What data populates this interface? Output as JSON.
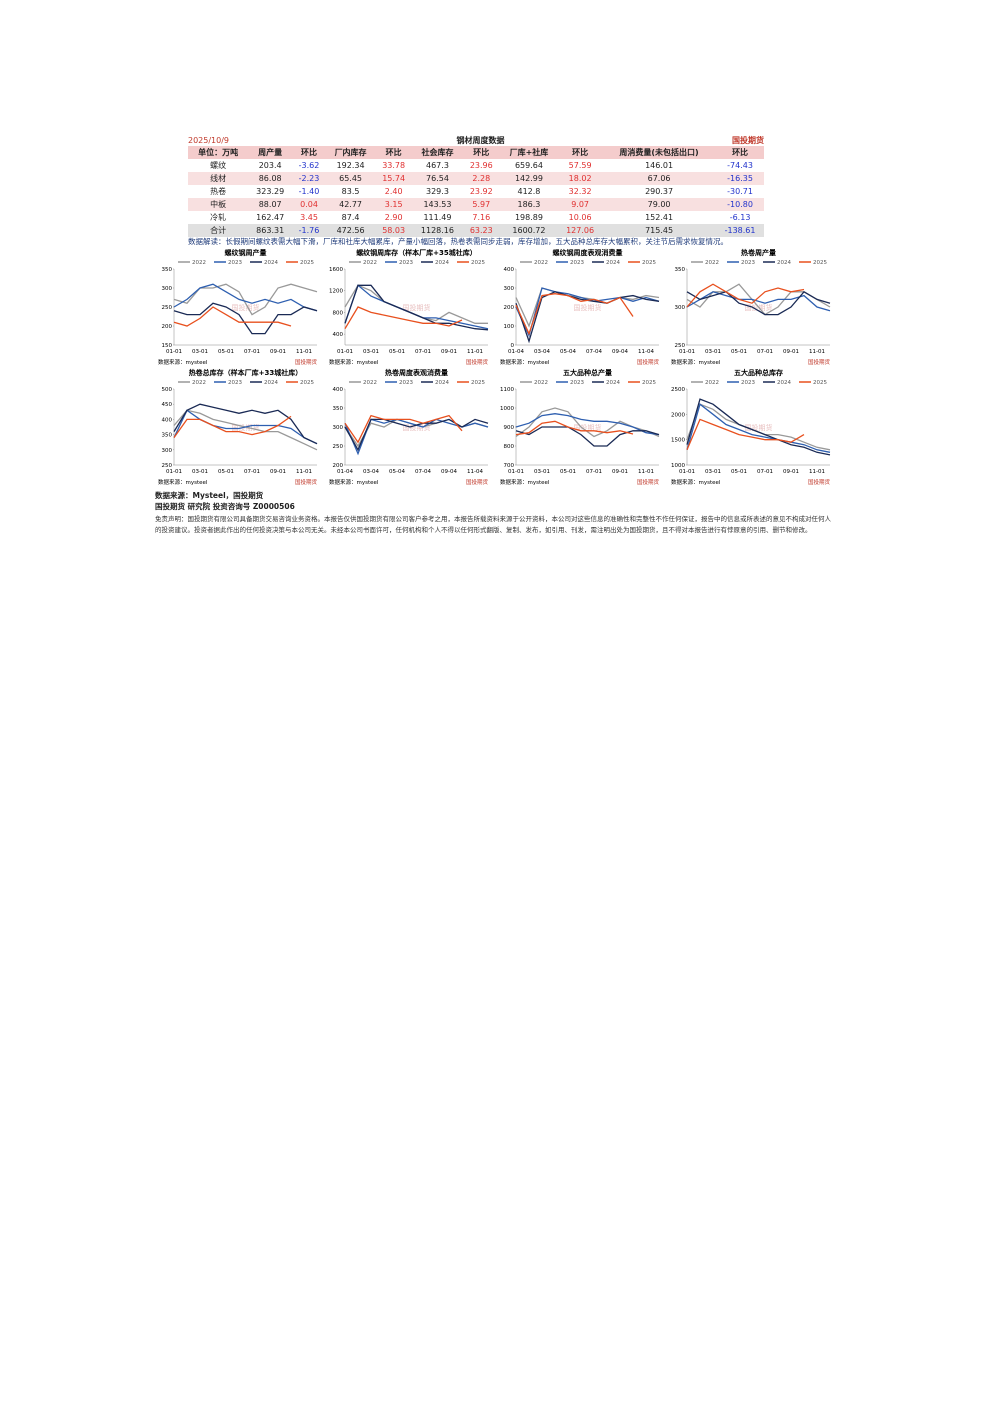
{
  "header": {
    "date": "2025/10/9",
    "title": "钢材周度数据",
    "logo": "国投期货"
  },
  "table": {
    "columns": [
      "单位：万吨",
      "周产量",
      "环比",
      "厂内库存",
      "环比",
      "社会库存",
      "环比",
      "厂库+社库",
      "环比",
      "周消费量(未包括出口)",
      "环比"
    ],
    "rows": [
      [
        "螺纹",
        203.4,
        -3.62,
        192.34,
        33.78,
        467.3,
        23.96,
        659.64,
        57.59,
        146.01,
        -74.43
      ],
      [
        "线材",
        86.08,
        -2.23,
        65.45,
        15.74,
        76.54,
        2.28,
        142.99,
        18.02,
        67.06,
        -16.35
      ],
      [
        "热卷",
        323.29,
        -1.4,
        83.5,
        2.4,
        329.3,
        23.92,
        412.8,
        32.32,
        290.37,
        -30.71
      ],
      [
        "中板",
        88.07,
        0.04,
        42.77,
        3.15,
        143.53,
        5.97,
        186.3,
        9.07,
        79,
        -10.8
      ],
      [
        "冷轧",
        162.47,
        3.45,
        87.4,
        2.9,
        111.49,
        7.16,
        198.89,
        10.06,
        152.41,
        -6.13
      ],
      [
        "合计",
        863.31,
        -1.76,
        472.56,
        58.03,
        1128.16,
        63.23,
        1600.72,
        127.06,
        715.45,
        -138.61
      ]
    ],
    "value_labels": {
      "rows": [
        [
          null,
          "203.4",
          "-3.62",
          "192.34",
          "33.78",
          "467.3",
          "23.96",
          "659.64",
          "57.59",
          "146.01",
          "-74.43"
        ],
        [
          null,
          "86.08",
          "-2.23",
          "65.45",
          "15.74",
          "76.54",
          "2.28",
          "142.99",
          "18.02",
          "67.06",
          "-16.35"
        ],
        [
          null,
          "323.29",
          "-1.40",
          "83.5",
          "2.40",
          "329.3",
          "23.92",
          "412.8",
          "32.32",
          "290.37",
          "-30.71"
        ],
        [
          null,
          "88.07",
          "0.04",
          "42.77",
          "3.15",
          "143.53",
          "5.97",
          "186.3",
          "9.07",
          "79.00",
          "-10.80"
        ],
        [
          null,
          "162.47",
          "3.45",
          "87.4",
          "2.90",
          "111.49",
          "7.16",
          "198.89",
          "10.06",
          "152.41",
          "-6.13"
        ],
        [
          null,
          "863.31",
          "-1.76",
          "472.56",
          "58.03",
          "1128.16",
          "63.23",
          "1600.72",
          "127.06",
          "715.45",
          "-138.61"
        ]
      ]
    }
  },
  "note": "数据解读：长假期间螺纹表需大幅下滑，厂库和社库大幅累库，产量小幅回落，热卷表需同步走弱，库存增加，五大品种总库存大幅累积，关注节后需求恢复情况。",
  "chart_data": [
    {
      "type": "line",
      "title": "螺纹钢周产量",
      "source": "数据来源：mysteel",
      "categories": [
        "01-01",
        null,
        "03-01",
        null,
        "05-01",
        null,
        "07-01",
        null,
        "09-01",
        null,
        "11-01",
        null
      ],
      "ylim": [
        150,
        350
      ],
      "yticks": [
        150,
        200,
        250,
        300,
        350
      ],
      "series": [
        {
          "name": "2022",
          "color": "#999999",
          "values": [
            270,
            260,
            300,
            300,
            310,
            290,
            230,
            250,
            300,
            310,
            300,
            290
          ]
        },
        {
          "name": "2023",
          "color": "#2e5fb0",
          "values": [
            250,
            270,
            300,
            310,
            290,
            270,
            260,
            270,
            260,
            270,
            250,
            240
          ]
        },
        {
          "name": "2024",
          "color": "#1a2a55",
          "values": [
            240,
            230,
            230,
            260,
            250,
            230,
            180,
            180,
            230,
            230,
            250,
            240
          ]
        },
        {
          "name": "2025",
          "color": "#e8501e",
          "values": [
            210,
            200,
            220,
            250,
            230,
            210,
            210,
            210,
            210,
            200,
            null,
            null
          ]
        }
      ]
    },
    {
      "type": "line",
      "title": "螺纹钢周库存（样本厂库+35城社库）",
      "source": "数据来源：mysteel",
      "categories": [
        "01-01",
        null,
        "03-01",
        null,
        "05-01",
        null,
        "07-01",
        null,
        "09-01",
        null,
        "11-01",
        null
      ],
      "ylim": [
        200,
        1600
      ],
      "yticks": [
        400,
        800,
        1200,
        1600
      ],
      "series": [
        {
          "name": "2022",
          "color": "#999999",
          "values": [
            900,
            1300,
            1200,
            1000,
            900,
            800,
            700,
            650,
            800,
            700,
            600,
            600
          ]
        },
        {
          "name": "2023",
          "color": "#2e5fb0",
          "values": [
            600,
            1300,
            1100,
            1000,
            900,
            800,
            700,
            700,
            650,
            600,
            550,
            500
          ]
        },
        {
          "name": "2024",
          "color": "#1a2a55",
          "values": [
            600,
            1300,
            1300,
            1000,
            900,
            800,
            700,
            600,
            600,
            550,
            500,
            480
          ]
        },
        {
          "name": "2025",
          "color": "#e8501e",
          "values": [
            500,
            900,
            800,
            750,
            700,
            650,
            600,
            600,
            550,
            660,
            null,
            null
          ]
        }
      ]
    },
    {
      "type": "line",
      "title": "螺纹钢周度表观消费量",
      "source": "数据来源：mysteel",
      "categories": [
        "01-04",
        null,
        "03-04",
        null,
        "05-04",
        null,
        "07-04",
        null,
        "09-04",
        null,
        "11-04",
        null
      ],
      "ylim": [
        0,
        400
      ],
      "yticks": [
        0,
        100,
        200,
        300,
        400
      ],
      "series": [
        {
          "name": "2022",
          "color": "#999999",
          "values": [
            250,
            100,
            300,
            280,
            260,
            250,
            240,
            220,
            250,
            240,
            260,
            250
          ]
        },
        {
          "name": "2023",
          "color": "#2e5fb0",
          "values": [
            200,
            50,
            300,
            280,
            270,
            250,
            230,
            240,
            250,
            230,
            250,
            230
          ]
        },
        {
          "name": "2024",
          "color": "#1a2a55",
          "values": [
            220,
            20,
            250,
            280,
            260,
            240,
            230,
            220,
            250,
            260,
            240,
            230
          ]
        },
        {
          "name": "2025",
          "color": "#e8501e",
          "values": [
            210,
            60,
            260,
            270,
            260,
            230,
            240,
            220,
            250,
            150,
            null,
            null
          ]
        }
      ]
    },
    {
      "type": "line",
      "title": "热卷周产量",
      "source": "数据来源：mysteel",
      "categories": [
        "01-01",
        null,
        "03-01",
        null,
        "05-01",
        null,
        "07-01",
        null,
        "09-01",
        null,
        "11-01",
        null
      ],
      "ylim": [
        250,
        350
      ],
      "yticks": [
        250,
        300,
        350
      ],
      "series": [
        {
          "name": "2022",
          "color": "#999999",
          "values": [
            310,
            300,
            320,
            320,
            330,
            310,
            290,
            300,
            320,
            320,
            310,
            300
          ]
        },
        {
          "name": "2023",
          "color": "#2e5fb0",
          "values": [
            300,
            310,
            320,
            315,
            310,
            310,
            305,
            310,
            310,
            315,
            300,
            295
          ]
        },
        {
          "name": "2024",
          "color": "#1a2a55",
          "values": [
            320,
            310,
            315,
            320,
            305,
            300,
            290,
            290,
            300,
            320,
            310,
            305
          ]
        },
        {
          "name": "2025",
          "color": "#e8501e",
          "values": [
            300,
            320,
            330,
            320,
            310,
            305,
            320,
            325,
            320,
            323,
            null,
            null
          ]
        }
      ]
    },
    {
      "type": "line",
      "title": "热卷总库存（样本厂库+33城社库）",
      "source": "数据来源：mysteel",
      "categories": [
        "01-01",
        null,
        "03-01",
        null,
        "05-01",
        null,
        "07-01",
        null,
        "09-01",
        null,
        "11-01",
        null
      ],
      "ylim": [
        250,
        500
      ],
      "yticks": [
        250,
        300,
        350,
        400,
        450,
        500
      ],
      "series": [
        {
          "name": "2022",
          "color": "#999999",
          "values": [
            380,
            430,
            420,
            400,
            390,
            380,
            370,
            360,
            360,
            340,
            320,
            300
          ]
        },
        {
          "name": "2023",
          "color": "#2e5fb0",
          "values": [
            340,
            430,
            400,
            380,
            370,
            370,
            380,
            380,
            380,
            370,
            340,
            320
          ]
        },
        {
          "name": "2024",
          "color": "#1a2a55",
          "values": [
            360,
            430,
            450,
            440,
            430,
            420,
            430,
            420,
            430,
            400,
            340,
            320
          ]
        },
        {
          "name": "2025",
          "color": "#e8501e",
          "values": [
            340,
            400,
            400,
            380,
            360,
            360,
            350,
            360,
            380,
            410,
            null,
            null
          ]
        }
      ]
    },
    {
      "type": "line",
      "title": "热卷周度表观消费量",
      "source": "数据来源：mysteel",
      "categories": [
        "01-04",
        null,
        "03-04",
        null,
        "05-04",
        null,
        "07-04",
        null,
        "09-04",
        null,
        "11-04",
        null
      ],
      "ylim": [
        200,
        400
      ],
      "yticks": [
        200,
        250,
        300,
        350,
        400
      ],
      "series": [
        {
          "name": "2022",
          "color": "#999999",
          "values": [
            300,
            250,
            310,
            300,
            320,
            310,
            300,
            310,
            320,
            300,
            310,
            300
          ]
        },
        {
          "name": "2023",
          "color": "#2e5fb0",
          "values": [
            310,
            230,
            320,
            310,
            320,
            310,
            300,
            320,
            310,
            300,
            310,
            300
          ]
        },
        {
          "name": "2024",
          "color": "#1a2a55",
          "values": [
            300,
            240,
            320,
            320,
            310,
            300,
            310,
            310,
            320,
            300,
            320,
            310
          ]
        },
        {
          "name": "2025",
          "color": "#e8501e",
          "values": [
            310,
            260,
            330,
            320,
            320,
            320,
            310,
            320,
            330,
            290,
            null,
            null
          ]
        }
      ]
    },
    {
      "type": "line",
      "title": "五大品种总产量",
      "source": "数据来源：mysteel",
      "categories": [
        "01-01",
        null,
        "03-01",
        null,
        "05-01",
        null,
        "07-01",
        null,
        "09-01",
        null,
        "11-01",
        null
      ],
      "ylim": [
        700,
        1100
      ],
      "yticks": [
        700,
        800,
        900,
        1000,
        1100
      ],
      "series": [
        {
          "name": "2022",
          "color": "#999999",
          "values": [
            850,
            900,
            980,
            1000,
            980,
            900,
            850,
            880,
            930,
            900,
            880,
            850
          ]
        },
        {
          "name": "2023",
          "color": "#2e5fb0",
          "values": [
            900,
            920,
            960,
            970,
            960,
            940,
            930,
            930,
            920,
            900,
            870,
            860
          ]
        },
        {
          "name": "2024",
          "color": "#1a2a55",
          "values": [
            880,
            860,
            900,
            900,
            900,
            860,
            800,
            800,
            860,
            880,
            880,
            860
          ]
        },
        {
          "name": "2025",
          "color": "#e8501e",
          "values": [
            860,
            870,
            920,
            930,
            900,
            880,
            880,
            870,
            880,
            863,
            null,
            null
          ]
        }
      ]
    },
    {
      "type": "line",
      "title": "五大品种总库存",
      "source": "数据来源：mysteel",
      "categories": [
        "01-01",
        null,
        "03-01",
        null,
        "05-01",
        null,
        "07-01",
        null,
        "09-01",
        null,
        "11-01",
        null
      ],
      "ylim": [
        1000,
        2500
      ],
      "yticks": [
        1000,
        1500,
        2000,
        2500
      ],
      "series": [
        {
          "name": "2022",
          "color": "#999999",
          "values": [
            1500,
            2200,
            2100,
            1900,
            1800,
            1700,
            1600,
            1600,
            1550,
            1450,
            1350,
            1300
          ]
        },
        {
          "name": "2023",
          "color": "#2e5fb0",
          "values": [
            1300,
            2200,
            2000,
            1800,
            1700,
            1600,
            1550,
            1500,
            1450,
            1400,
            1300,
            1250
          ]
        },
        {
          "name": "2024",
          "color": "#1a2a55",
          "values": [
            1400,
            2300,
            2200,
            2000,
            1800,
            1700,
            1600,
            1500,
            1400,
            1350,
            1250,
            1200
          ]
        },
        {
          "name": "2025",
          "color": "#e8501e",
          "values": [
            1300,
            1900,
            1800,
            1700,
            1600,
            1550,
            1500,
            1500,
            1450,
            1600,
            null,
            null
          ]
        }
      ]
    }
  ],
  "footer": {
    "source": "数据来源：Mysteel，国投期货",
    "org": "国投期货 研究院 投资咨询号 Z0000506",
    "disclaimer": "免责声明：国投期货有限公司具备期货交易咨询业务资格。本报告仅供国投期货有限公司客户参考之用，本报告所载资料来源于公开资料，本公司对这些信息的准确性和完整性不作任何保证，报告中的信息或所表述的意见不构成对任何人的投资建议。投资者据此作出的任何投资决策与本公司无关。未经本公司书面许可，任何机构和个人不得以任何形式翻版、复制、发布，如引用、刊发，需注明出处为国投期货，且不得对本报告进行有悖原意的引用、删节和修改。"
  }
}
